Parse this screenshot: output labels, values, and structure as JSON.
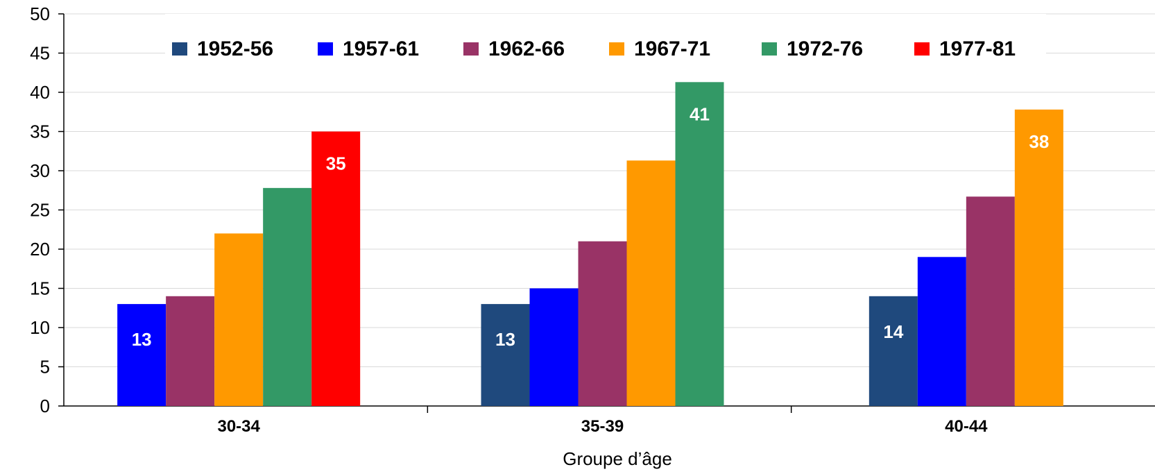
{
  "chart_data": {
    "type": "bar",
    "categories": [
      "30-34",
      "35-39",
      "40-44"
    ],
    "xlabel": "Groupe d’âge",
    "ylabel": "",
    "title": "",
    "ylim": [
      0,
      50
    ],
    "yticks": [
      0,
      5,
      10,
      15,
      20,
      25,
      30,
      35,
      40,
      45,
      50
    ],
    "grid": true,
    "legend_position": "top",
    "series": [
      {
        "name": "1952-56",
        "color": "#1F497D",
        "values": [
          null,
          13,
          14
        ]
      },
      {
        "name": "1957-61",
        "color": "#0000FF",
        "values": [
          13,
          15,
          19
        ]
      },
      {
        "name": "1962-66",
        "color": "#993366",
        "values": [
          14,
          21,
          26.7
        ]
      },
      {
        "name": "1967-71",
        "color": "#FF9900",
        "values": [
          22,
          31.3,
          37.8
        ]
      },
      {
        "name": "1972-76",
        "color": "#339966",
        "values": [
          27.8,
          41.3,
          null
        ]
      },
      {
        "name": "1977-81",
        "color": "#FF0000",
        "values": [
          35,
          null,
          null
        ]
      }
    ],
    "data_labels": [
      {
        "category": "30-34",
        "series": "1957-61",
        "text": "13"
      },
      {
        "category": "30-34",
        "series": "1977-81",
        "text": "35"
      },
      {
        "category": "35-39",
        "series": "1952-56",
        "text": "13"
      },
      {
        "category": "35-39",
        "series": "1972-76",
        "text": "41"
      },
      {
        "category": "40-44",
        "series": "1952-56",
        "text": "14"
      },
      {
        "category": "40-44",
        "series": "1967-71",
        "text": "38"
      }
    ]
  }
}
